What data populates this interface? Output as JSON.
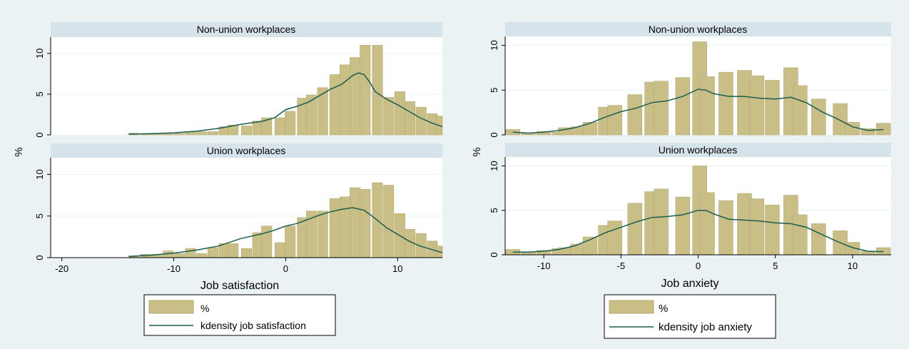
{
  "colors": {
    "background": "#eaf2f3",
    "plot_bg": "#ffffff",
    "strip_bg": "#d7e3ea",
    "bar_fill": "#c9bf86",
    "bar_stroke": "#b3aa72",
    "density_line": "#1a5e4f",
    "grid": "#eaf2f3"
  },
  "icons": {
    "legend_bar": "bar-swatch",
    "legend_line": "line-swatch"
  },
  "chart_data": [
    {
      "type": "bar",
      "title": "",
      "xlabel": "Job satisfaction",
      "ylabel": "%",
      "xlim": [
        -21,
        14
      ],
      "ylim": [
        0,
        12
      ],
      "xticks": [
        -20,
        -10,
        0,
        10
      ],
      "yticks": [
        0,
        5,
        10
      ],
      "legend": {
        "position": "bottom",
        "entries": [
          "%",
          "kdensity job satisfaction"
        ]
      },
      "panels": [
        {
          "title": "Non-union workplaces",
          "bars": [
            {
              "x": -13.6,
              "y": 0.2
            },
            {
              "x": -12.5,
              "y": 0.1
            },
            {
              "x": -11.5,
              "y": 0.2
            },
            {
              "x": -10.5,
              "y": 0.2
            },
            {
              "x": -9.5,
              "y": 0.2
            },
            {
              "x": -8.5,
              "y": 0.4
            },
            {
              "x": -7.5,
              "y": 0.4
            },
            {
              "x": -6.5,
              "y": 0.4
            },
            {
              "x": -5.5,
              "y": 1.0
            },
            {
              "x": -4.7,
              "y": 1.2
            },
            {
              "x": -3.5,
              "y": 1.1
            },
            {
              "x": -2.5,
              "y": 1.7
            },
            {
              "x": -1.7,
              "y": 2.1
            },
            {
              "x": -0.5,
              "y": 2.1
            },
            {
              "x": 0.4,
              "y": 2.9
            },
            {
              "x": 1.5,
              "y": 4.5
            },
            {
              "x": 2.3,
              "y": 4.9
            },
            {
              "x": 3.3,
              "y": 5.8
            },
            {
              "x": 4.4,
              "y": 7.4
            },
            {
              "x": 5.3,
              "y": 8.6
            },
            {
              "x": 6.2,
              "y": 9.5
            },
            {
              "x": 7.1,
              "y": 11.0
            },
            {
              "x": 8.2,
              "y": 11.0
            },
            {
              "x": 9.2,
              "y": 4.6
            },
            {
              "x": 10.2,
              "y": 5.3
            },
            {
              "x": 11.1,
              "y": 4.1
            },
            {
              "x": 12.1,
              "y": 3.4
            },
            {
              "x": 13.1,
              "y": 2.6
            },
            {
              "x": 13.9,
              "y": 2.3
            },
            {
              "x": 14.6,
              "y": 1.9
            }
          ],
          "density": [
            [
              -14,
              0.1
            ],
            [
              -12,
              0.15
            ],
            [
              -10,
              0.25
            ],
            [
              -8,
              0.45
            ],
            [
              -6,
              0.8
            ],
            [
              -4,
              1.3
            ],
            [
              -2,
              1.7
            ],
            [
              -1,
              2.1
            ],
            [
              0,
              3.1
            ],
            [
              1,
              3.5
            ],
            [
              2,
              4.0
            ],
            [
              3,
              4.8
            ],
            [
              4,
              5.6
            ],
            [
              5,
              6.2
            ],
            [
              6,
              7.3
            ],
            [
              6.5,
              7.6
            ],
            [
              7,
              7.4
            ],
            [
              7.5,
              6.5
            ],
            [
              8,
              5.3
            ],
            [
              9,
              4.4
            ],
            [
              10,
              3.7
            ],
            [
              11,
              2.9
            ],
            [
              12,
              2.1
            ],
            [
              13,
              1.5
            ],
            [
              14,
              1.0
            ]
          ]
        },
        {
          "title": "Union workplaces",
          "bars": [
            {
              "x": -13.6,
              "y": 0.2
            },
            {
              "x": -12.5,
              "y": 0.4
            },
            {
              "x": -11.5,
              "y": 0.4
            },
            {
              "x": -10.5,
              "y": 0.8
            },
            {
              "x": -9.5,
              "y": 0.5
            },
            {
              "x": -8.5,
              "y": 1.1
            },
            {
              "x": -7.5,
              "y": 0.5
            },
            {
              "x": -6.5,
              "y": 1.2
            },
            {
              "x": -5.5,
              "y": 1.7
            },
            {
              "x": -4.7,
              "y": 1.7
            },
            {
              "x": -3.5,
              "y": 1.1
            },
            {
              "x": -2.5,
              "y": 3.0
            },
            {
              "x": -1.7,
              "y": 3.8
            },
            {
              "x": -0.5,
              "y": 1.8
            },
            {
              "x": 0.4,
              "y": 3.8
            },
            {
              "x": 1.5,
              "y": 4.8
            },
            {
              "x": 2.3,
              "y": 5.6
            },
            {
              "x": 3.3,
              "y": 5.6
            },
            {
              "x": 4.4,
              "y": 7.1
            },
            {
              "x": 5.3,
              "y": 7.3
            },
            {
              "x": 6.2,
              "y": 8.4
            },
            {
              "x": 7.1,
              "y": 8.2
            },
            {
              "x": 8.2,
              "y": 9.0
            },
            {
              "x": 9.2,
              "y": 8.7
            },
            {
              "x": 10.2,
              "y": 5.3
            },
            {
              "x": 11.1,
              "y": 3.4
            },
            {
              "x": 12.1,
              "y": 2.9
            },
            {
              "x": 13.1,
              "y": 2.0
            },
            {
              "x": 13.9,
              "y": 1.4
            },
            {
              "x": 14.6,
              "y": 1.3
            }
          ],
          "density": [
            [
              -14,
              0.15
            ],
            [
              -12,
              0.3
            ],
            [
              -10,
              0.55
            ],
            [
              -8,
              0.9
            ],
            [
              -6,
              1.4
            ],
            [
              -4,
              2.3
            ],
            [
              -2,
              2.9
            ],
            [
              -1,
              3.3
            ],
            [
              0,
              3.8
            ],
            [
              1,
              4.1
            ],
            [
              2,
              4.6
            ],
            [
              3,
              5.1
            ],
            [
              4,
              5.5
            ],
            [
              5,
              5.8
            ],
            [
              6,
              6.0
            ],
            [
              7,
              5.7
            ],
            [
              8,
              4.7
            ],
            [
              9,
              3.6
            ],
            [
              10,
              2.8
            ],
            [
              11,
              2.0
            ],
            [
              12,
              1.4
            ],
            [
              13,
              1.0
            ],
            [
              14,
              0.6
            ]
          ]
        }
      ]
    },
    {
      "type": "bar",
      "title": "",
      "xlabel": "Job anxiety",
      "ylabel": "%",
      "xlim": [
        -12.5,
        12.5
      ],
      "ylim": [
        0,
        11
      ],
      "xticks": [
        -10,
        -5,
        0,
        5,
        10
      ],
      "yticks": [
        0,
        5,
        10
      ],
      "legend": {
        "position": "bottom",
        "entries": [
          "%",
          "kdensity job anxiety"
        ]
      },
      "panels": [
        {
          "title": "Non-union workplaces",
          "bars": [
            {
              "x": -12.0,
              "y": 0.6
            },
            {
              "x": -11.0,
              "y": 0.2
            },
            {
              "x": -10.0,
              "y": 0.4
            },
            {
              "x": -9.0,
              "y": 0.3
            },
            {
              "x": -8.6,
              "y": 0.8
            },
            {
              "x": -7.8,
              "y": 0.9
            },
            {
              "x": -7.0,
              "y": 1.4
            },
            {
              "x": -6.0,
              "y": 3.1
            },
            {
              "x": -5.4,
              "y": 3.3
            },
            {
              "x": -4.1,
              "y": 4.5
            },
            {
              "x": -3.0,
              "y": 5.9
            },
            {
              "x": -2.4,
              "y": 6.0
            },
            {
              "x": -1.0,
              "y": 6.4
            },
            {
              "x": 0.1,
              "y": 10.4
            },
            {
              "x": 0.6,
              "y": 6.5
            },
            {
              "x": 1.8,
              "y": 7.0
            },
            {
              "x": 3.0,
              "y": 7.2
            },
            {
              "x": 3.8,
              "y": 6.6
            },
            {
              "x": 4.8,
              "y": 6.1
            },
            {
              "x": 6.0,
              "y": 7.5
            },
            {
              "x": 6.6,
              "y": 5.5
            },
            {
              "x": 7.8,
              "y": 4.0
            },
            {
              "x": 9.2,
              "y": 3.5
            },
            {
              "x": 10.0,
              "y": 1.4
            },
            {
              "x": 11.0,
              "y": 0.7
            },
            {
              "x": 12.0,
              "y": 1.3
            }
          ],
          "density": [
            [
              -12,
              0.3
            ],
            [
              -11,
              0.2
            ],
            [
              -10,
              0.3
            ],
            [
              -9,
              0.5
            ],
            [
              -8,
              0.8
            ],
            [
              -7,
              1.3
            ],
            [
              -6,
              2.0
            ],
            [
              -5,
              2.6
            ],
            [
              -4,
              3.0
            ],
            [
              -3,
              3.6
            ],
            [
              -2,
              3.8
            ],
            [
              -1,
              4.3
            ],
            [
              0,
              5.1
            ],
            [
              0.5,
              5.0
            ],
            [
              1,
              4.6
            ],
            [
              2,
              4.3
            ],
            [
              3,
              4.3
            ],
            [
              4,
              4.1
            ],
            [
              5,
              4.0
            ],
            [
              6,
              4.2
            ],
            [
              7,
              3.6
            ],
            [
              8,
              2.6
            ],
            [
              9,
              1.8
            ],
            [
              10,
              0.9
            ],
            [
              11,
              0.5
            ],
            [
              12,
              0.6
            ]
          ]
        },
        {
          "title": "Union workplaces",
          "bars": [
            {
              "x": -12.0,
              "y": 0.6
            },
            {
              "x": -11.0,
              "y": 0.3
            },
            {
              "x": -10.0,
              "y": 0.5
            },
            {
              "x": -9.0,
              "y": 0.7
            },
            {
              "x": -8.6,
              "y": 0.8
            },
            {
              "x": -7.8,
              "y": 1.2
            },
            {
              "x": -7.0,
              "y": 2.0
            },
            {
              "x": -6.0,
              "y": 3.3
            },
            {
              "x": -5.4,
              "y": 3.8
            },
            {
              "x": -4.1,
              "y": 5.8
            },
            {
              "x": -3.0,
              "y": 7.1
            },
            {
              "x": -2.4,
              "y": 7.4
            },
            {
              "x": -1.0,
              "y": 6.5
            },
            {
              "x": 0.1,
              "y": 10.0
            },
            {
              "x": 0.6,
              "y": 7.0
            },
            {
              "x": 1.8,
              "y": 6.1
            },
            {
              "x": 3.0,
              "y": 6.9
            },
            {
              "x": 3.8,
              "y": 6.3
            },
            {
              "x": 4.8,
              "y": 5.6
            },
            {
              "x": 6.0,
              "y": 6.7
            },
            {
              "x": 6.6,
              "y": 4.5
            },
            {
              "x": 7.8,
              "y": 3.5
            },
            {
              "x": 9.2,
              "y": 2.7
            },
            {
              "x": 10.0,
              "y": 1.4
            },
            {
              "x": 11.0,
              "y": 0.4
            },
            {
              "x": 12.0,
              "y": 0.8
            }
          ],
          "density": [
            [
              -12,
              0.3
            ],
            [
              -11,
              0.3
            ],
            [
              -10,
              0.4
            ],
            [
              -9,
              0.6
            ],
            [
              -8,
              1.0
            ],
            [
              -7,
              1.7
            ],
            [
              -6,
              2.5
            ],
            [
              -5,
              3.1
            ],
            [
              -4,
              3.7
            ],
            [
              -3,
              4.2
            ],
            [
              -2,
              4.3
            ],
            [
              -1,
              4.5
            ],
            [
              0,
              5.0
            ],
            [
              0.5,
              5.0
            ],
            [
              1,
              4.6
            ],
            [
              2,
              4.0
            ],
            [
              3,
              3.9
            ],
            [
              4,
              3.8
            ],
            [
              5,
              3.6
            ],
            [
              6,
              3.5
            ],
            [
              7,
              3.1
            ],
            [
              8,
              2.3
            ],
            [
              9,
              1.5
            ],
            [
              10,
              0.8
            ],
            [
              11,
              0.4
            ],
            [
              12,
              0.35
            ]
          ]
        }
      ]
    }
  ]
}
